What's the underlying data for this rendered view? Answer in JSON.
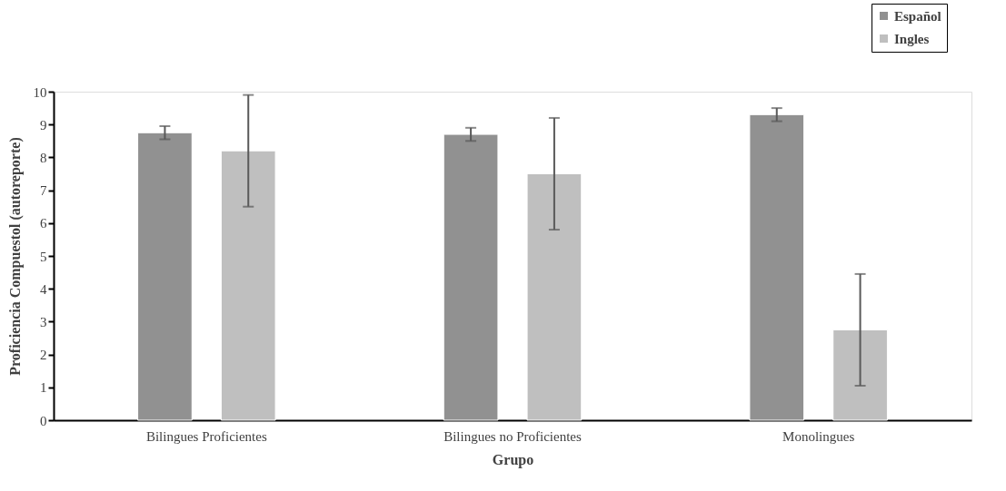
{
  "chart_data": {
    "type": "bar",
    "xlabel": "Grupo",
    "ylabel": "Proficiencia  Compuestol (autoreporte)",
    "categories": [
      "Bilingues Proficientes",
      "Bilingues no Proficientes",
      "Monolingues"
    ],
    "series": [
      {
        "name": "Español",
        "color": "#919191",
        "values": [
          8.75,
          8.7,
          9.3
        ],
        "errors": [
          0.2,
          0.2,
          0.2
        ]
      },
      {
        "name": "Ingles",
        "color": "#bfbfbf",
        "values": [
          8.2,
          7.5,
          2.75
        ],
        "errors": [
          1.7,
          1.7,
          1.7
        ]
      }
    ],
    "ylim": [
      0,
      10
    ],
    "yticks": [
      0,
      1,
      2,
      3,
      4,
      5,
      6,
      7,
      8,
      9,
      10
    ],
    "grid": false,
    "legend": "top right"
  }
}
